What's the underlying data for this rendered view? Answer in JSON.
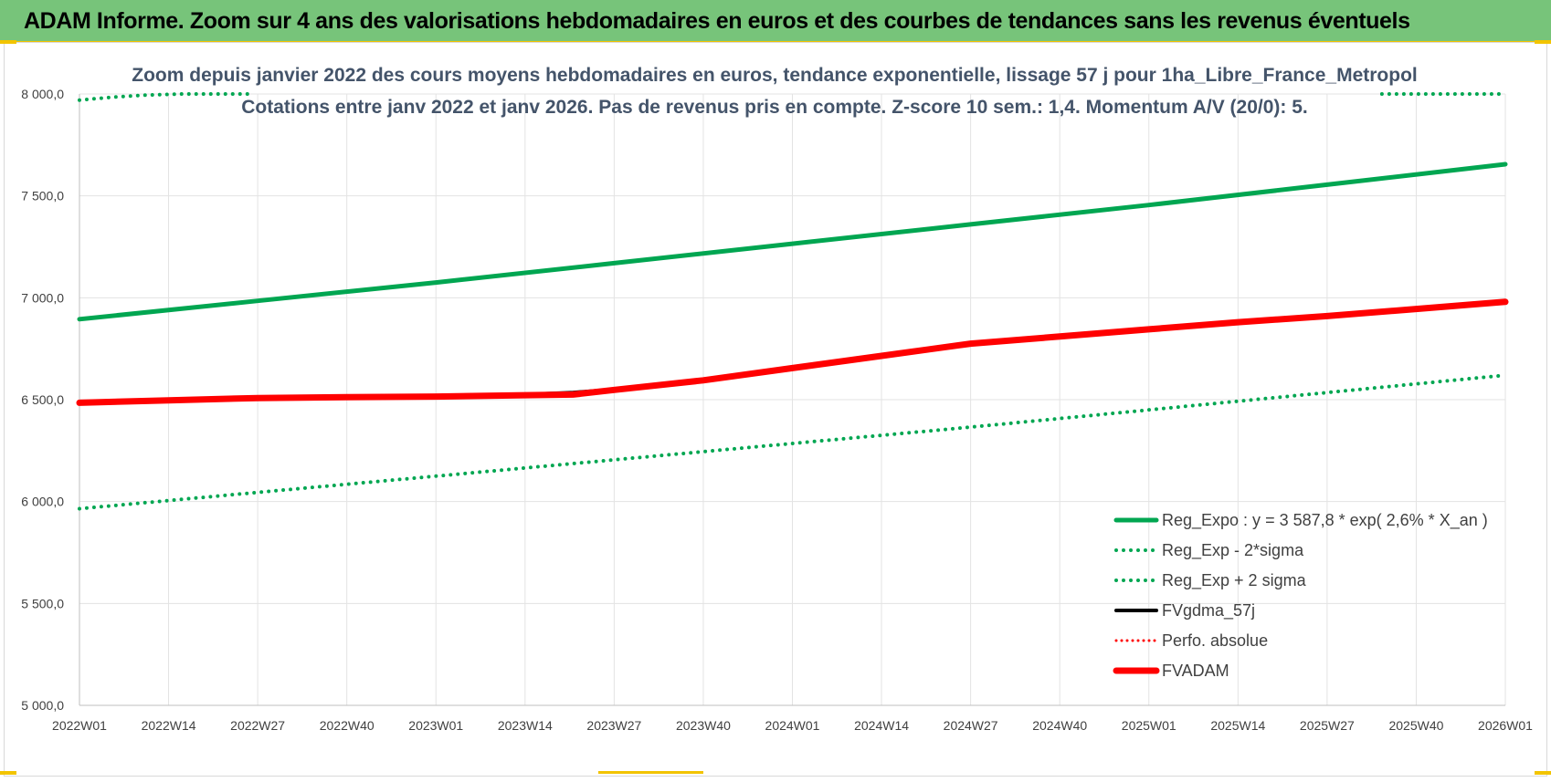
{
  "header": {
    "title": "ADAM Informe. Zoom sur 4 ans des valorisations hebdomadaires en euros et des courbes de tendances sans les revenus éventuels"
  },
  "chart_data": {
    "type": "line",
    "title_line1": "Zoom depuis janvier 2022 des cours moyens hebdomadaires en euros, tendance exponentielle, lissage 57 j pour 1ha_Libre_France_Metropol",
    "title_line2": "Cotations entre janv 2022 et janv 2026. Pas de revenus pris en compte. Z-score 10 sem.: 1,4. Momentum A/V (20/0): 5.",
    "x_tick_labels": [
      "2022W01",
      "2022W14",
      "2022W27",
      "2022W40",
      "2023W01",
      "2023W14",
      "2023W27",
      "2023W40",
      "2024W01",
      "2024W14",
      "2024W27",
      "2024W40",
      "2025W01",
      "2025W14",
      "2025W27",
      "2025W40",
      "2026W01"
    ],
    "y_tick_labels": [
      "5 000,0",
      "5 500,0",
      "6 000,0",
      "6 500,0",
      "7 000,0",
      "7 500,0",
      "8 000,0"
    ],
    "ylim": [
      5000,
      8000
    ],
    "x_week_index_range": [
      0,
      208
    ],
    "grid": true,
    "legend_position": "bottom-right",
    "colors": {
      "green": "#00a651",
      "red": "#ff0000",
      "black": "#000000",
      "banner": "#77c47a",
      "accent": "#f2c400"
    },
    "series": [
      {
        "name": "Reg_Expo : y = 3 587,8 * exp( 2,6% *  X_an )",
        "style": "solid-green",
        "x": [
          0,
          26,
          52,
          78,
          104,
          130,
          156,
          182,
          208
        ],
        "y": [
          6895,
          6985,
          7075,
          7170,
          7265,
          7360,
          7455,
          7555,
          7655
        ]
      },
      {
        "name": "Reg_Exp - 2*sigma",
        "style": "dotted-green",
        "x": [
          0,
          26,
          52,
          78,
          104,
          130,
          156,
          182,
          208
        ],
        "y": [
          5965,
          6045,
          6125,
          6205,
          6285,
          6365,
          6450,
          6535,
          6620
        ]
      },
      {
        "name": "Reg_Exp + 2 sigma",
        "style": "dotted-green",
        "x": [
          0,
          5,
          10,
          15,
          20,
          25,
          190,
          195,
          200,
          208
        ],
        "y": [
          7970,
          7985,
          7995,
          8000,
          8000,
          8000,
          8000,
          8000,
          8000,
          8000
        ]
      },
      {
        "name": "FVgdma_57j",
        "style": "solid-black",
        "x": [
          0,
          13,
          26,
          39,
          52,
          65,
          72,
          78,
          91,
          104,
          117,
          130,
          143,
          156,
          169,
          182,
          195,
          208
        ],
        "y": [
          6485,
          6497,
          6508,
          6512,
          6515,
          6525,
          6535,
          6550,
          6595,
          6655,
          6715,
          6775,
          6810,
          6845,
          6880,
          6910,
          6945,
          6980
        ]
      },
      {
        "name": "Perfo. absolue",
        "style": "dotted-red",
        "x": [],
        "y": []
      },
      {
        "name": "FVADAM",
        "style": "solid-red",
        "x": [
          0,
          13,
          26,
          39,
          52,
          65,
          72,
          78,
          91,
          104,
          117,
          130,
          143,
          156,
          169,
          182,
          195,
          208
        ],
        "y": [
          6485,
          6497,
          6508,
          6512,
          6515,
          6522,
          6525,
          6548,
          6595,
          6655,
          6715,
          6775,
          6810,
          6845,
          6880,
          6910,
          6945,
          6980
        ]
      }
    ]
  }
}
